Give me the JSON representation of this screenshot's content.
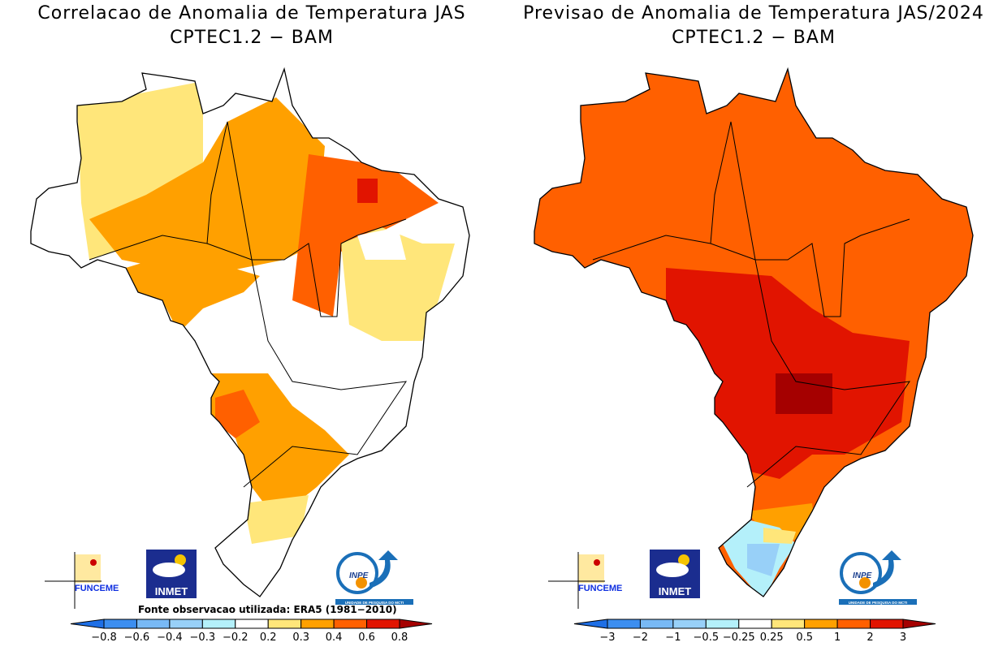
{
  "panels": [
    {
      "title_line1": "Correlacao de Anomalia de Temperatura JAS",
      "title_line2": "CPTEC1.2 − BAM",
      "source_note": "Fonte observacao utilizada: ERA5 (1981−2010)",
      "colorbar_labels": [
        "−0.8",
        "−0.6",
        "−0.4",
        "−0.3",
        "−0.2",
        "0.2",
        "0.3",
        "0.4",
        "0.6",
        "0.8"
      ]
    },
    {
      "title_line1": "Previsao de Anomalia de Temperatura JAS/2024",
      "title_line2": "CPTEC1.2 − BAM",
      "colorbar_labels": [
        "−3",
        "−2",
        "−1",
        "−0.5",
        "−0.25",
        "0.25",
        "0.5",
        "1",
        "2",
        "3"
      ]
    }
  ],
  "colorbar_colors": [
    "#1e6fe6",
    "#3c8ef0",
    "#78b9f5",
    "#98d0f8",
    "#b4f0fa",
    "#ffffff",
    "#ffe67a",
    "#ffa000",
    "#ff6000",
    "#e11400",
    "#a50000"
  ],
  "logos": {
    "funceme": "FUNCEME",
    "inmet": "INMET",
    "inpe": "INPE",
    "inpe_sub": "UNIDADE DE PESQUISA DO MCTI"
  }
}
